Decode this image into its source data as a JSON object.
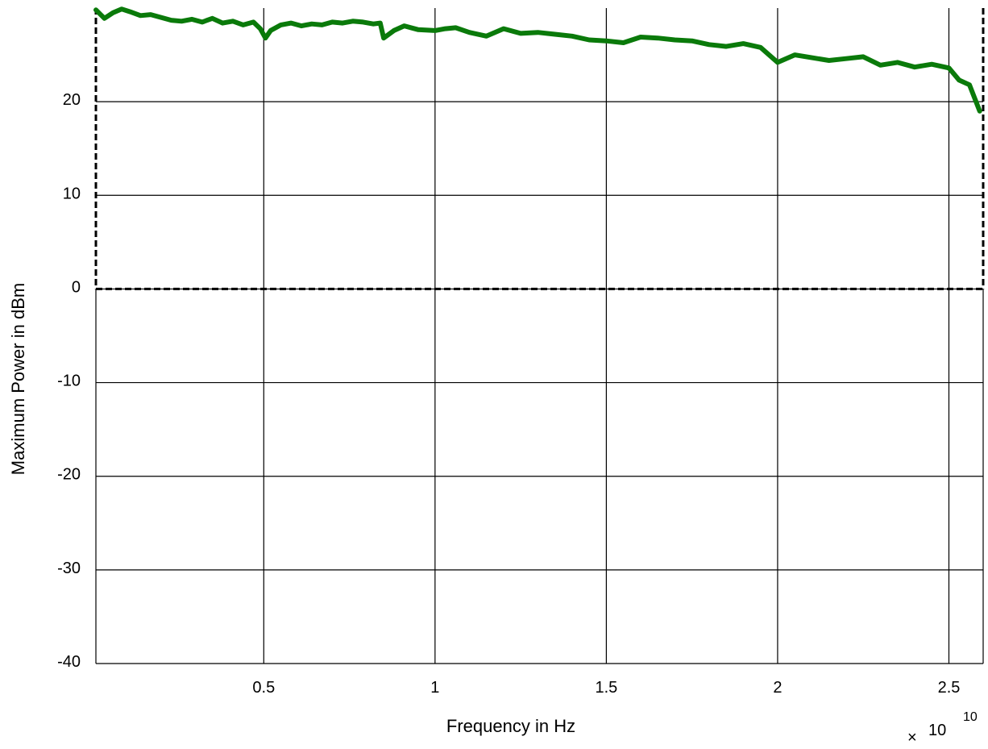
{
  "chart_data": {
    "type": "line",
    "title": "",
    "xlabel": "Frequency in Hz",
    "ylabel": "Maximum Power in dBm",
    "x_exponent_label": "10",
    "x_exponent_power": "10",
    "xlim": [
      100000000.0,
      26000000000.0
    ],
    "ylim": [
      -40,
      30
    ],
    "grid": true,
    "x_ticks": [
      5000000000.0,
      10000000000.0,
      15000000000.0,
      20000000000.0,
      25000000000.0
    ],
    "x_tick_labels": [
      "0.5",
      "1",
      "1.5",
      "2",
      "2.5"
    ],
    "y_ticks": [
      -40,
      -30,
      -20,
      -10,
      0,
      10,
      20
    ],
    "y_tick_labels": [
      "-40",
      "-30",
      "-20",
      "-10",
      "0",
      "10",
      "20"
    ],
    "line_color": "#0a7a0a",
    "limit_box": {
      "x": [
        100000000.0,
        26000000000.0
      ],
      "y": [
        0,
        30
      ],
      "style": "dashed",
      "color": "#000000"
    },
    "series": [
      {
        "x": [
          100000000.0,
          350000000.0,
          600000000.0,
          850000000.0,
          1100000000.0,
          1400000000.0,
          1700000000.0,
          2000000000.0,
          2300000000.0,
          2600000000.0,
          2900000000.0,
          3200000000.0,
          3500000000.0,
          3800000000.0,
          4100000000.0,
          4400000000.0,
          4700000000.0,
          4900000000.0,
          5050000000.0,
          5200000000.0,
          5500000000.0,
          5800000000.0,
          6100000000.0,
          6400000000.0,
          6700000000.0,
          7000000000.0,
          7300000000.0,
          7600000000.0,
          7900000000.0,
          8200000000.0,
          8400000000.0,
          8500000000.0,
          8800000000.0,
          9100000000.0,
          9500000000.0,
          10000000000.0,
          10300000000.0,
          10600000000.0,
          11000000000.0,
          11500000000.0,
          12000000000.0,
          12500000000.0,
          13000000000.0,
          13500000000.0,
          14000000000.0,
          14500000000.0,
          15000000000.0,
          15500000000.0,
          16000000000.0,
          16500000000.0,
          17000000000.0,
          17500000000.0,
          18000000000.0,
          18500000000.0,
          19000000000.0,
          19500000000.0,
          20000000000.0,
          20500000000.0,
          21000000000.0,
          21500000000.0,
          22000000000.0,
          22500000000.0,
          23000000000.0,
          23500000000.0,
          24000000000.0,
          24500000000.0,
          25000000000.0,
          25300000000.0,
          25600000000.0,
          25900000000.0
        ],
        "y": [
          29.8,
          28.9,
          29.5,
          29.9,
          29.6,
          29.2,
          29.3,
          29.0,
          28.7,
          28.6,
          28.8,
          28.5,
          28.9,
          28.4,
          28.6,
          28.2,
          28.5,
          27.8,
          26.8,
          27.6,
          28.2,
          28.4,
          28.1,
          28.3,
          28.2,
          28.5,
          28.4,
          28.6,
          28.5,
          28.3,
          28.4,
          26.8,
          27.6,
          28.1,
          27.7,
          27.6,
          27.8,
          27.9,
          27.4,
          27.0,
          27.8,
          27.3,
          27.4,
          27.2,
          27.0,
          26.6,
          26.5,
          26.3,
          26.9,
          26.8,
          26.6,
          26.5,
          26.1,
          25.9,
          26.2,
          25.8,
          24.2,
          25.0,
          24.7,
          24.4,
          24.6,
          24.8,
          23.9,
          24.2,
          23.7,
          24.0,
          23.6,
          22.3,
          21.8,
          19.0
        ]
      }
    ]
  }
}
